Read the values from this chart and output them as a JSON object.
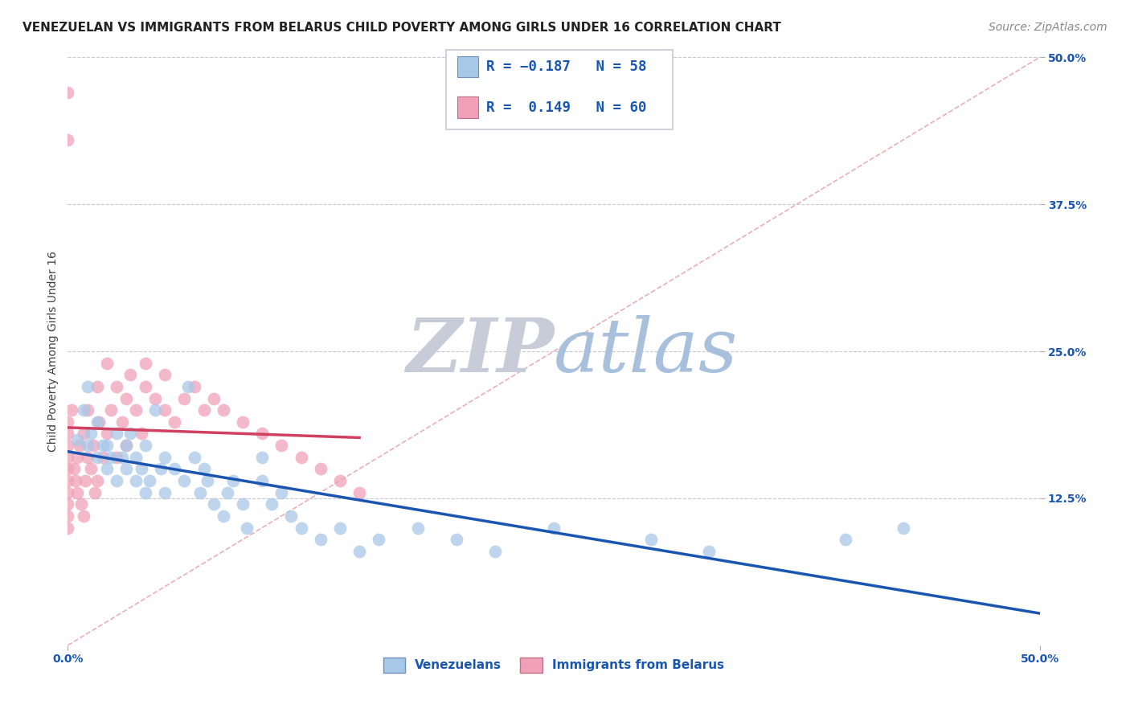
{
  "title": "VENEZUELAN VS IMMIGRANTS FROM BELARUS CHILD POVERTY AMONG GIRLS UNDER 16 CORRELATION CHART",
  "source": "Source: ZipAtlas.com",
  "ylabel": "Child Poverty Among Girls Under 16",
  "xlim": [
    0,
    0.5
  ],
  "ylim": [
    0,
    0.5
  ],
  "blue_R": -0.187,
  "blue_N": 58,
  "pink_R": 0.149,
  "pink_N": 60,
  "blue_color": "#a8c8e8",
  "pink_color": "#f0a0b8",
  "blue_line_color": "#1a56b0",
  "pink_line_color": "#d04060",
  "ref_line_color": "#e8b0b8",
  "background_color": "#ffffff",
  "grid_color": "#c8c8d8",
  "zip_color": "#c8ccd8",
  "atlas_color": "#a8c0dc",
  "venezuelan_x": [
    0.005,
    0.008,
    0.01,
    0.01,
    0.012,
    0.015,
    0.015,
    0.018,
    0.02,
    0.02,
    0.022,
    0.025,
    0.025,
    0.028,
    0.03,
    0.03,
    0.032,
    0.035,
    0.035,
    0.038,
    0.04,
    0.04,
    0.042,
    0.045,
    0.048,
    0.05,
    0.05,
    0.055,
    0.06,
    0.062,
    0.065,
    0.068,
    0.07,
    0.072,
    0.075,
    0.08,
    0.082,
    0.085,
    0.09,
    0.092,
    0.1,
    0.1,
    0.105,
    0.11,
    0.115,
    0.12,
    0.13,
    0.14,
    0.15,
    0.16,
    0.18,
    0.2,
    0.22,
    0.25,
    0.3,
    0.33,
    0.4,
    0.43
  ],
  "venezuelan_y": [
    0.175,
    0.2,
    0.17,
    0.22,
    0.18,
    0.19,
    0.16,
    0.17,
    0.17,
    0.15,
    0.16,
    0.18,
    0.14,
    0.16,
    0.15,
    0.17,
    0.18,
    0.16,
    0.14,
    0.15,
    0.17,
    0.13,
    0.14,
    0.2,
    0.15,
    0.16,
    0.13,
    0.15,
    0.14,
    0.22,
    0.16,
    0.13,
    0.15,
    0.14,
    0.12,
    0.11,
    0.13,
    0.14,
    0.12,
    0.1,
    0.16,
    0.14,
    0.12,
    0.13,
    0.11,
    0.1,
    0.09,
    0.1,
    0.08,
    0.09,
    0.1,
    0.09,
    0.08,
    0.1,
    0.09,
    0.08,
    0.09,
    0.1
  ],
  "belarus_x": [
    0.0,
    0.0,
    0.0,
    0.0,
    0.0,
    0.0,
    0.0,
    0.0,
    0.0,
    0.0,
    0.002,
    0.003,
    0.004,
    0.005,
    0.005,
    0.006,
    0.007,
    0.008,
    0.008,
    0.009,
    0.01,
    0.01,
    0.012,
    0.013,
    0.014,
    0.015,
    0.015,
    0.016,
    0.018,
    0.02,
    0.02,
    0.022,
    0.025,
    0.025,
    0.028,
    0.03,
    0.03,
    0.032,
    0.035,
    0.038,
    0.04,
    0.04,
    0.045,
    0.05,
    0.05,
    0.055,
    0.06,
    0.065,
    0.07,
    0.075,
    0.08,
    0.09,
    0.1,
    0.11,
    0.12,
    0.13,
    0.14,
    0.15,
    0.0,
    0.0
  ],
  "belarus_y": [
    0.16,
    0.17,
    0.14,
    0.15,
    0.13,
    0.18,
    0.12,
    0.19,
    0.11,
    0.1,
    0.2,
    0.15,
    0.14,
    0.16,
    0.13,
    0.17,
    0.12,
    0.18,
    0.11,
    0.14,
    0.2,
    0.16,
    0.15,
    0.17,
    0.13,
    0.22,
    0.14,
    0.19,
    0.16,
    0.24,
    0.18,
    0.2,
    0.22,
    0.16,
    0.19,
    0.21,
    0.17,
    0.23,
    0.2,
    0.18,
    0.22,
    0.24,
    0.21,
    0.2,
    0.23,
    0.19,
    0.21,
    0.22,
    0.2,
    0.21,
    0.2,
    0.19,
    0.18,
    0.17,
    0.16,
    0.15,
    0.14,
    0.13,
    0.43,
    0.47
  ],
  "title_fontsize": 11,
  "source_fontsize": 10,
  "legend_fontsize": 12,
  "axis_label_fontsize": 10
}
